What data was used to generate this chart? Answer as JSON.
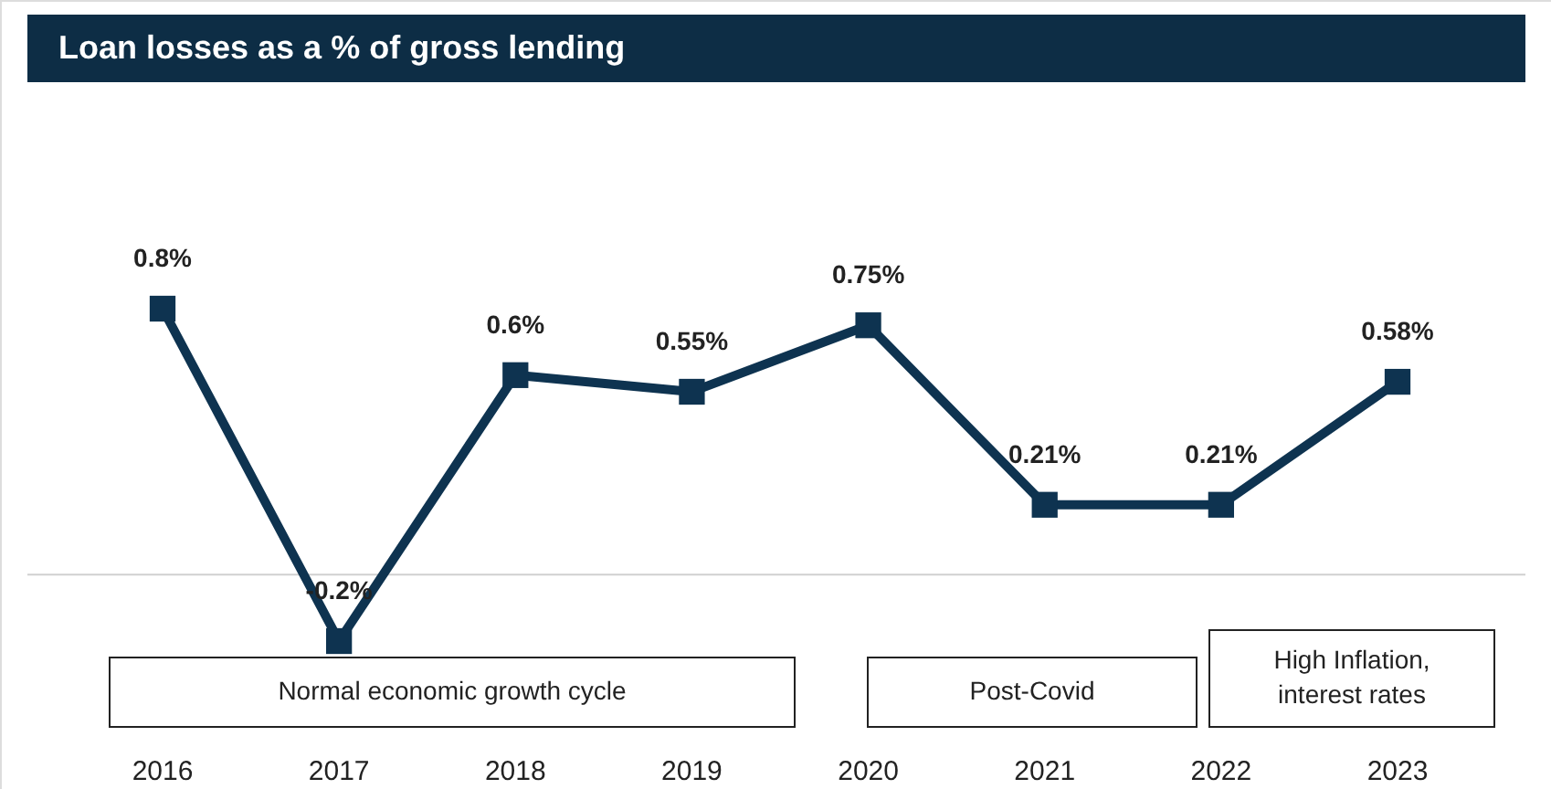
{
  "chart_data": {
    "type": "line",
    "title": "Loan losses as a % of gross lending",
    "categories": [
      "2016",
      "2017",
      "2018",
      "2019",
      "2020",
      "2021",
      "2022",
      "2023"
    ],
    "series": [
      {
        "color": "#0e3350",
        "values": [
          0.8,
          -0.2,
          0.6,
          0.55,
          0.75,
          0.21,
          0.21,
          0.58
        ],
        "value_labels": [
          "0.8%",
          "-0.2%",
          "0.6%",
          "0.55%",
          "0.75%",
          "0.21%",
          "0.21%",
          "0.58%"
        ]
      }
    ],
    "marker": "square",
    "line_style": "solid",
    "annotations": [
      "Normal economic growth cycle",
      "Post-Covid",
      "High Inflation,\ninterest rates"
    ]
  }
}
